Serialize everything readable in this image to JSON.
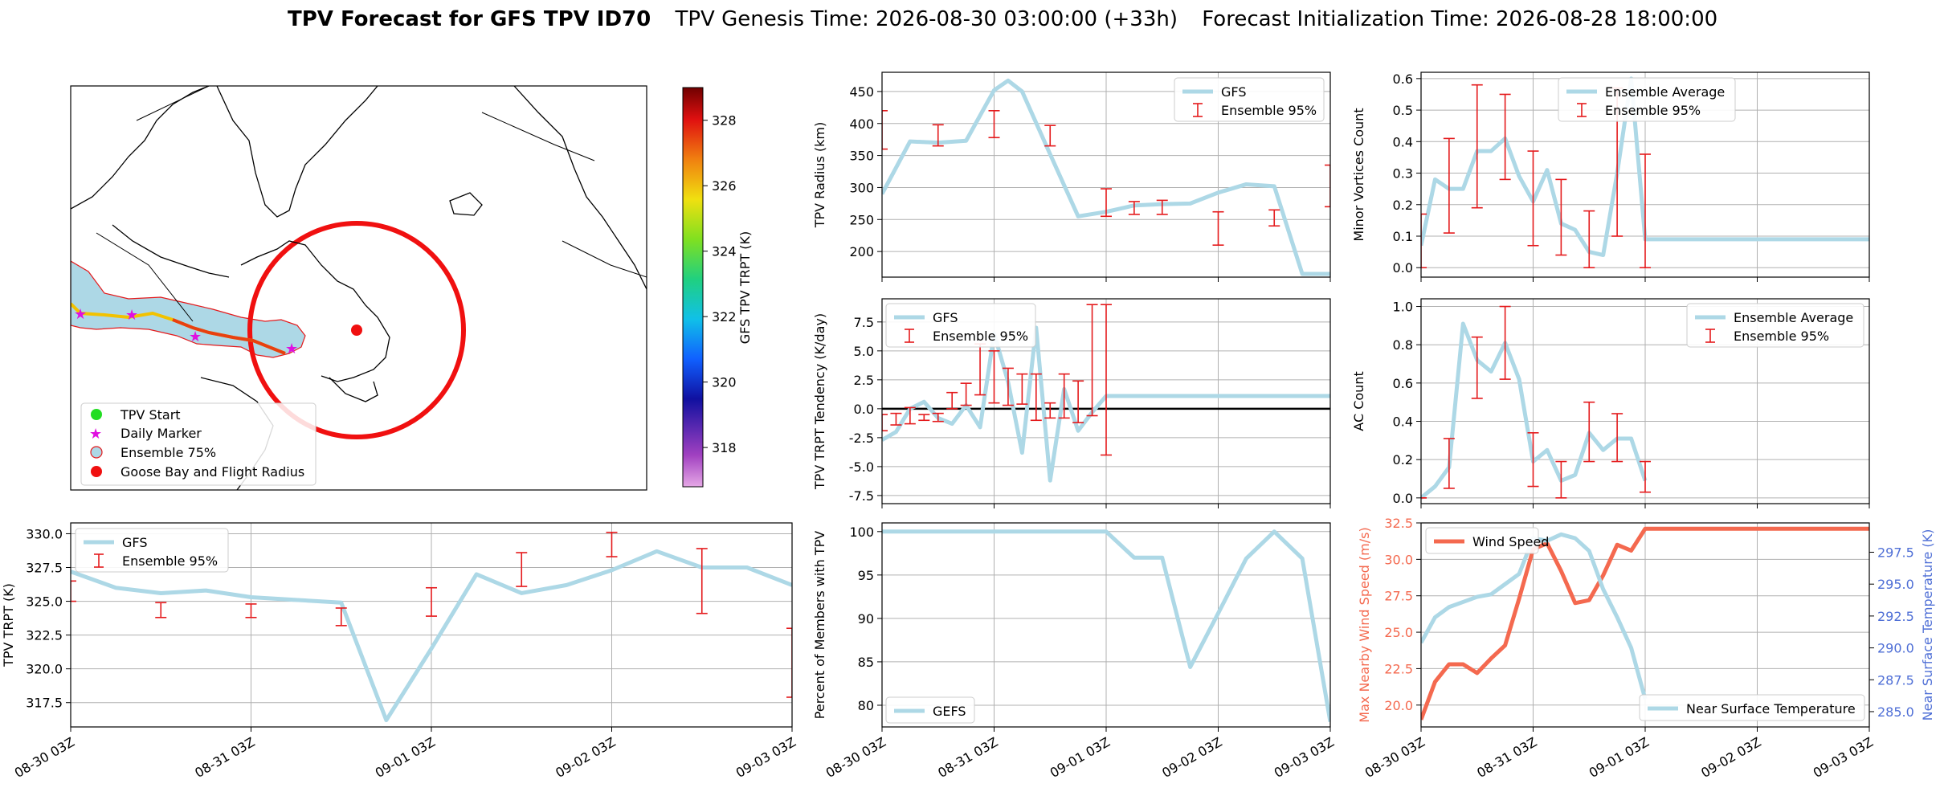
{
  "header": {
    "title_bold": "TPV Forecast for GFS TPV ID70",
    "genesis": "TPV Genesis Time: 2026-08-30 03:00:00 (+33h)",
    "init": "Forecast Initialization Time: 2026-08-28 18:00:00"
  },
  "time_ticks": [
    "08-30 03Z",
    "08-31 03Z",
    "09-01 03Z",
    "09-02 03Z",
    "09-03 03Z"
  ],
  "colors": {
    "gfs": "#add8e6",
    "errorbar": "#e41a1c",
    "wind": "#f4694f",
    "temp_axis": "#4f6fd6",
    "grid": "#b0b0b0",
    "land": "#add8e6"
  },
  "map": {
    "legend": [
      "TPV Start",
      "Daily Marker",
      "Ensemble 75%",
      "Goose Bay and Flight Radius"
    ],
    "colorbar": {
      "label": "GFS TPV TRPT (K)",
      "ticks": [
        318,
        320,
        322,
        324,
        326,
        328
      ],
      "range": [
        316.8,
        329
      ]
    }
  },
  "chart_data": [
    {
      "id": "radius",
      "type": "line",
      "ylabel": "TPV Radius (km)",
      "ylim": [
        160,
        480
      ],
      "yticks": [
        200,
        250,
        300,
        350,
        400,
        450
      ],
      "legend_loc": "upper-right",
      "grid": true,
      "series": [
        {
          "name": "GFS",
          "kind": "line",
          "x": [
            0,
            0.25,
            0.5,
            0.75,
            1,
            1.125,
            1.25,
            1.5,
            1.75,
            2,
            2.25,
            2.5,
            2.75,
            3,
            3.25,
            3.5,
            3.75,
            4
          ],
          "y": [
            290,
            372,
            370,
            373,
            452,
            467,
            450,
            352,
            255,
            262,
            272,
            274,
            275,
            292,
            305,
            302,
            165,
            165
          ]
        },
        {
          "name": "Ensemble 95%",
          "kind": "errorbar",
          "x": [
            0,
            0.5,
            1,
            1.5,
            2,
            2.25,
            2.5,
            3,
            3.5,
            4
          ],
          "low": [
            360,
            365,
            378,
            365,
            255,
            258,
            258,
            210,
            240,
            270
          ],
          "high": [
            420,
            398,
            420,
            397,
            298,
            278,
            280,
            262,
            265,
            335
          ]
        }
      ]
    },
    {
      "id": "minor",
      "type": "line",
      "ylabel": "Minor Vortices Count",
      "ylim": [
        -0.03,
        0.62
      ],
      "yticks": [
        0.0,
        0.1,
        0.2,
        0.3,
        0.4,
        0.5,
        0.6
      ],
      "legend_loc": "upper-center",
      "grid": true,
      "series": [
        {
          "name": "Ensemble Average",
          "kind": "line",
          "x": [
            0,
            0.125,
            0.25,
            0.375,
            0.5,
            0.625,
            0.75,
            0.875,
            1,
            1.125,
            1.25,
            1.375,
            1.5,
            1.625,
            1.75,
            1.875,
            2,
            2.125,
            2.25,
            2.375,
            2.5,
            2.625,
            2.75,
            2.875,
            3,
            3.125,
            3.25,
            3.375,
            3.5,
            3.625,
            3.75,
            3.875,
            4
          ],
          "y": [
            0.07,
            0.28,
            0.25,
            0.25,
            0.37,
            0.37,
            0.41,
            0.29,
            0.21,
            0.31,
            0.14,
            0.12,
            0.05,
            0.04,
            0.3,
            0.6,
            0.09,
            0.09,
            0.09,
            0.09,
            0.09,
            0.09,
            0.09,
            0.09,
            0.09,
            0.09,
            0.09,
            0.09,
            0.09,
            0.09,
            0.09,
            0.09,
            0.09
          ]
        },
        {
          "name": "Ensemble 95%",
          "kind": "errorbar",
          "x": [
            0,
            0.25,
            0.5,
            0.75,
            1,
            1.25,
            1.5,
            1.75,
            2
          ],
          "low": [
            0.0,
            0.11,
            0.19,
            0.28,
            0.07,
            0.04,
            0.0,
            0.1,
            0.0
          ],
          "high": [
            0.17,
            0.41,
            0.58,
            0.55,
            0.37,
            0.28,
            0.18,
            0.57,
            0.36
          ]
        }
      ]
    },
    {
      "id": "tendency",
      "type": "line",
      "ylabel": "TPV TRPT Tendency (K/day)",
      "ylim": [
        -8.2,
        9.5
      ],
      "yticks": [
        -7.5,
        -5.0,
        -2.5,
        0.0,
        2.5,
        5.0,
        7.5
      ],
      "legend_loc": "upper-left",
      "grid": true,
      "series": [
        {
          "name": "GFS",
          "kind": "line",
          "x": [
            0,
            0.125,
            0.25,
            0.375,
            0.5,
            0.625,
            0.75,
            0.875,
            1,
            1.125,
            1.25,
            1.375,
            1.5,
            1.625,
            1.75,
            1.875,
            2,
            2.125,
            2.25,
            2.375,
            2.5,
            2.625,
            2.75,
            2.875,
            3,
            3.125,
            3.25,
            3.375,
            3.5,
            3.625,
            3.75,
            3.875,
            4
          ],
          "y": [
            -2.7,
            -2.0,
            0.0,
            0.6,
            -0.8,
            -1.3,
            0.3,
            -1.6,
            6.5,
            2.3,
            -3.8,
            7.0,
            -6.2,
            1.7,
            -1.9,
            -0.3,
            1.1,
            1.1,
            1.1,
            1.1,
            1.1,
            1.1,
            1.1,
            1.1,
            1.1,
            1.1,
            1.1,
            1.1,
            1.1,
            1.1,
            1.1,
            1.1,
            1.1
          ]
        },
        {
          "name": "Ensemble 95%",
          "kind": "errorbar",
          "x": [
            0,
            0.125,
            0.25,
            0.375,
            0.5,
            0.625,
            0.75,
            0.875,
            1,
            1.125,
            1.25,
            1.375,
            1.5,
            1.625,
            1.75,
            1.875,
            2
          ],
          "low": [
            -1.9,
            -1.4,
            -1.3,
            -1.0,
            -1.1,
            0.0,
            0.3,
            1.2,
            0.5,
            0.3,
            0.4,
            -1.0,
            -0.8,
            -0.8,
            -1.2,
            -0.6,
            -4.0
          ],
          "high": [
            -0.5,
            -0.4,
            0.1,
            -0.5,
            -0.4,
            1.4,
            2.2,
            5.6,
            5.0,
            3.5,
            3.0,
            3.0,
            0.5,
            3.0,
            2.4,
            9.0,
            9.0
          ]
        }
      ]
    },
    {
      "id": "ac",
      "type": "line",
      "ylabel": "AC Count",
      "ylim": [
        -0.03,
        1.04
      ],
      "yticks": [
        0.0,
        0.2,
        0.4,
        0.6,
        0.8,
        1.0
      ],
      "legend_loc": "upper-right",
      "grid": true,
      "series": [
        {
          "name": "Ensemble Average",
          "kind": "line",
          "x": [
            0,
            0.125,
            0.25,
            0.375,
            0.5,
            0.625,
            0.75,
            0.875,
            1,
            1.125,
            1.25,
            1.375,
            1.5,
            1.625,
            1.75,
            1.875,
            2
          ],
          "y": [
            0.0,
            0.06,
            0.16,
            0.91,
            0.72,
            0.66,
            0.81,
            0.62,
            0.19,
            0.25,
            0.09,
            0.12,
            0.34,
            0.25,
            0.31,
            0.31,
            0.09
          ]
        },
        {
          "name": "Ensemble 95%",
          "kind": "errorbar",
          "x": [
            0,
            0.25,
            0.5,
            0.75,
            1,
            1.25,
            1.5,
            1.75,
            2
          ],
          "low": [
            0.0,
            0.05,
            0.52,
            0.62,
            0.06,
            0.0,
            0.19,
            0.19,
            0.03
          ],
          "high": [
            0.0,
            0.31,
            0.84,
            1.0,
            0.34,
            0.19,
            0.5,
            0.44,
            0.19
          ]
        }
      ]
    },
    {
      "id": "trpt",
      "type": "line",
      "ylabel": "TPV TRPT (K)",
      "ylim": [
        315.7,
        330.8
      ],
      "yticks": [
        317.5,
        320.0,
        322.5,
        325.0,
        327.5,
        330.0
      ],
      "legend_loc": "upper-left",
      "grid": true,
      "series": [
        {
          "name": "GFS",
          "kind": "line",
          "x": [
            0,
            0.25,
            0.5,
            0.75,
            1,
            1.25,
            1.5,
            1.75,
            2,
            2.25,
            2.5,
            2.75,
            3,
            3.25,
            3.5,
            3.75,
            4
          ],
          "y": [
            327.2,
            326.0,
            325.6,
            325.8,
            325.3,
            325.1,
            324.9,
            316.2,
            321.5,
            327.0,
            325.6,
            326.2,
            327.3,
            328.7,
            327.5,
            327.5,
            326.2
          ]
        },
        {
          "name": "Ensemble 95%",
          "kind": "errorbar",
          "x": [
            0,
            0.5,
            1,
            1.5,
            2,
            2.5,
            3,
            3.5,
            4
          ],
          "low": [
            325.0,
            323.8,
            323.8,
            323.2,
            323.9,
            326.1,
            328.3,
            324.1,
            317.9
          ],
          "high": [
            326.5,
            324.9,
            324.8,
            324.5,
            326.0,
            328.6,
            330.1,
            328.9,
            323.0
          ]
        }
      ]
    },
    {
      "id": "percent",
      "type": "line",
      "ylabel": "Percent of Members with TPV",
      "ylim": [
        77.5,
        101
      ],
      "yticks": [
        80,
        85,
        90,
        95,
        100
      ],
      "legend_loc": "lower-left",
      "grid": true,
      "series": [
        {
          "name": "GEFS",
          "kind": "line",
          "x": [
            0,
            0.25,
            0.5,
            0.75,
            1,
            1.25,
            1.5,
            1.75,
            2,
            2.25,
            2.5,
            2.75,
            3,
            3.25,
            3.5,
            3.75,
            4
          ],
          "y": [
            100,
            100,
            100,
            100,
            100,
            100,
            100,
            100,
            100,
            97,
            97,
            84.4,
            90.6,
            96.9,
            100,
            96.9,
            78.1
          ]
        }
      ]
    },
    {
      "id": "wind",
      "type": "line",
      "ylabel": "Max Nearby Wind Speed (m/s)",
      "y2label": "Near Surface Temperature (K)",
      "ylim": [
        18.5,
        32.5
      ],
      "yticks": [
        20.0,
        22.5,
        25.0,
        27.5,
        30.0,
        32.5
      ],
      "y2lim": [
        283.8,
        299.8
      ],
      "y2ticks": [
        285.0,
        287.5,
        290.0,
        292.5,
        295.0,
        297.5
      ],
      "legend_loc": "upper-left / lower-right",
      "grid": true,
      "series": [
        {
          "name": "Wind Speed",
          "kind": "line",
          "axis": "left",
          "x": [
            0,
            0.125,
            0.25,
            0.375,
            0.5,
            0.625,
            0.75,
            0.875,
            1,
            1.125,
            1.25,
            1.375,
            1.5,
            1.625,
            1.75,
            1.875,
            2,
            2.125,
            2.25,
            2.375,
            2.5,
            2.625,
            2.75,
            2.875,
            3,
            3.125,
            3.25,
            3.375,
            3.5,
            3.625,
            3.75,
            3.875,
            4
          ],
          "y": [
            19.0,
            21.6,
            22.8,
            22.8,
            22.2,
            23.2,
            24.1,
            27.3,
            30.7,
            31.1,
            29.2,
            27.0,
            27.2,
            28.9,
            31.0,
            30.6,
            32.1,
            32.1,
            32.1,
            32.1,
            32.1,
            32.1,
            32.1,
            32.1,
            32.1,
            32.1,
            32.1,
            32.1,
            32.1,
            32.1,
            32.1,
            32.1,
            32.1
          ]
        },
        {
          "name": "Near Surface Temperature",
          "kind": "line",
          "axis": "right",
          "x": [
            0,
            0.125,
            0.25,
            0.375,
            0.5,
            0.625,
            0.75,
            0.875,
            1,
            1.125,
            1.25,
            1.375,
            1.5,
            1.625,
            1.75,
            1.875,
            2
          ],
          "y": [
            290.4,
            292.4,
            293.2,
            293.6,
            294.0,
            294.2,
            295.0,
            295.8,
            298.6,
            298.4,
            298.9,
            298.6,
            297.6,
            294.6,
            292.4,
            290.0,
            286.0
          ]
        }
      ]
    }
  ]
}
